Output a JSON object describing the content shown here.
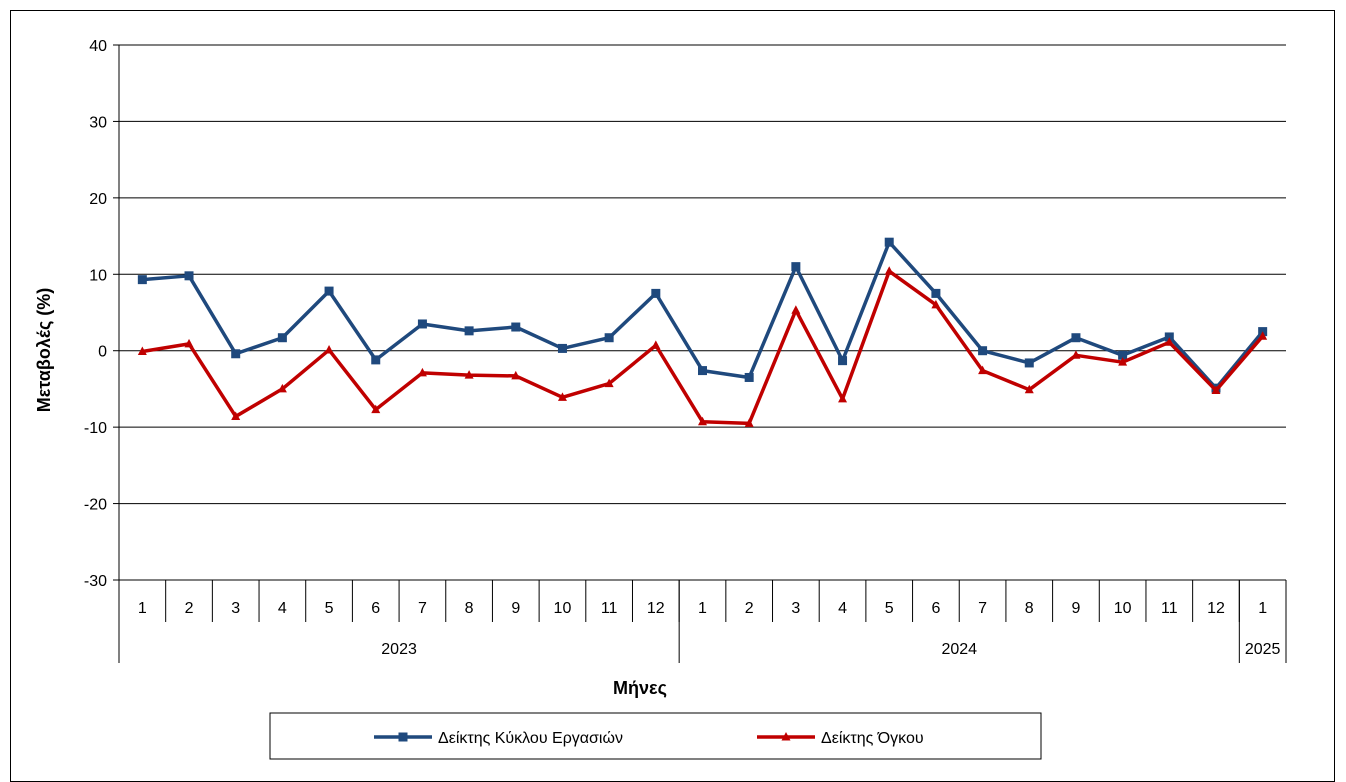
{
  "chart_data": {
    "type": "line",
    "xlabel": "Μήνες",
    "ylabel": "Μεταβολές  (%)",
    "ylim": [
      -30,
      40
    ],
    "yticks": [
      -30,
      -20,
      -10,
      0,
      10,
      20,
      30,
      40
    ],
    "grid": "horizontal",
    "legend_position": "bottom",
    "categories": [
      "1",
      "2",
      "3",
      "4",
      "5",
      "6",
      "7",
      "8",
      "9",
      "10",
      "11",
      "12",
      "1",
      "2",
      "3",
      "4",
      "5",
      "6",
      "7",
      "8",
      "9",
      "10",
      "11",
      "12",
      "1"
    ],
    "year_groups": [
      {
        "label": "2023",
        "count": 12
      },
      {
        "label": "2024",
        "count": 12
      },
      {
        "label": "2025",
        "count": 1
      }
    ],
    "series": [
      {
        "name": "Δείκτης Κύκλου Εργασιών",
        "color": "#1F497D",
        "marker": "square",
        "values": [
          9.3,
          9.8,
          -0.4,
          1.7,
          7.8,
          -1.2,
          3.5,
          2.6,
          3.1,
          0.3,
          1.7,
          7.5,
          -2.6,
          -3.5,
          11.0,
          -1.3,
          14.2,
          7.5,
          0.0,
          -1.6,
          1.7,
          -0.6,
          1.8,
          -4.9,
          2.5
        ]
      },
      {
        "name": "Δείκτης Όγκου",
        "color": "#C00000",
        "marker": "triangle",
        "values": [
          -0.1,
          0.9,
          -8.6,
          -5.0,
          0.1,
          -7.7,
          -2.9,
          -3.2,
          -3.3,
          -6.1,
          -4.3,
          0.7,
          -9.3,
          -9.5,
          5.3,
          -6.3,
          10.4,
          6.0,
          -2.6,
          -5.1,
          -0.6,
          -1.5,
          1.1,
          -5.2,
          1.9
        ]
      }
    ]
  }
}
